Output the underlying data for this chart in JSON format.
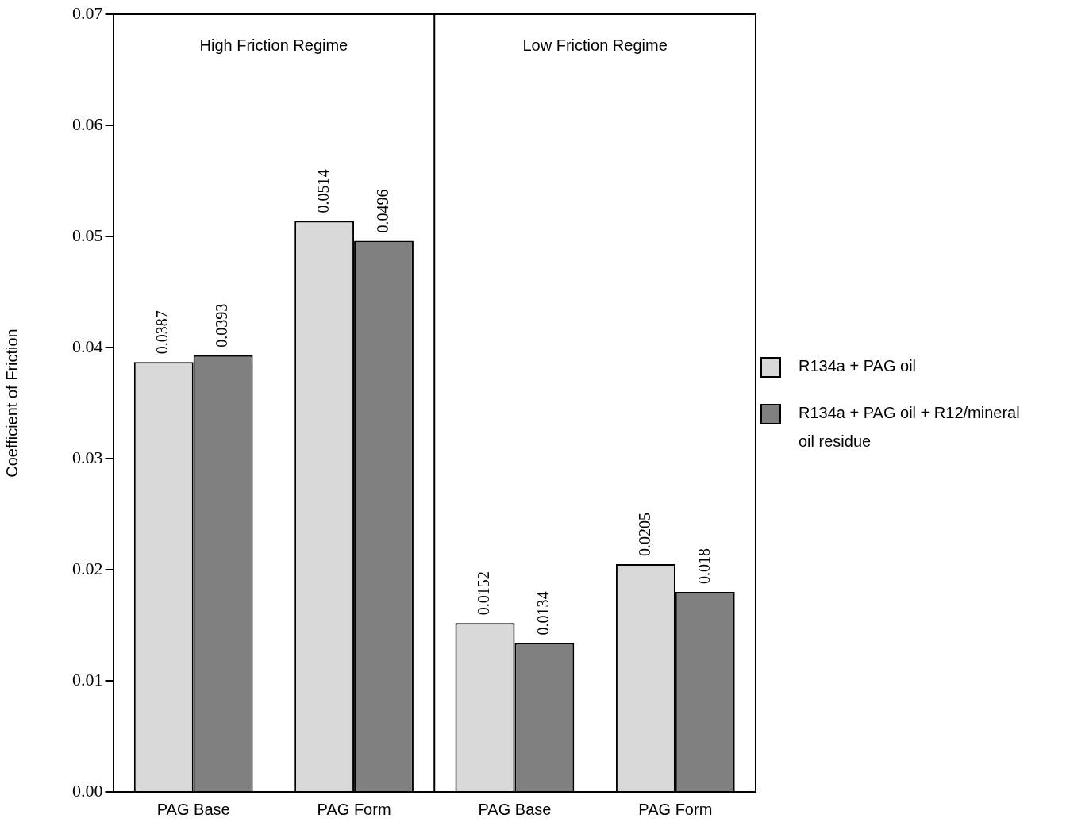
{
  "chart_data": {
    "type": "bar",
    "ylabel": "Coefficient of Friction",
    "categories": [
      "PAG Base",
      "PAG Form",
      "PAG Base",
      "PAG Form"
    ],
    "series": [
      {
        "name": "R134a + PAG oil",
        "color": "#d9d9d9",
        "values": [
          0.0387,
          0.0514,
          0.0152,
          0.0205
        ]
      },
      {
        "name": "R134a + PAG oil + R12/mineral oil residue",
        "color": "#808080",
        "values": [
          0.0393,
          0.0496,
          0.0134,
          0.018
        ]
      }
    ],
    "ylim": [
      0,
      0.07
    ],
    "yticks": [
      {
        "value": 0,
        "label": "0.00"
      },
      {
        "value": 0.01,
        "label": "0.01"
      },
      {
        "value": 0.02,
        "label": "0.02"
      },
      {
        "value": 0.03,
        "label": "0.03"
      },
      {
        "value": 0.04,
        "label": "0.04"
      },
      {
        "value": 0.05,
        "label": "0.05"
      },
      {
        "value": 0.06,
        "label": "0.06"
      },
      {
        "value": 0.07,
        "label": "0.07"
      }
    ],
    "annotations": [
      "High Friction Regime",
      "Low Friction Regime"
    ],
    "data_labels": true,
    "grid": false,
    "legend": "right"
  }
}
